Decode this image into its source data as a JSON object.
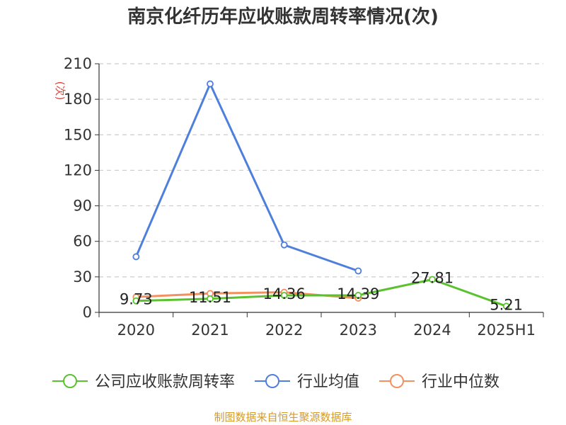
{
  "chart_data": {
    "type": "line",
    "title": "南京化纤历年应收账款周转率情况(次)",
    "ylabel": "(次)",
    "categories": [
      "2020",
      "2021",
      "2022",
      "2023",
      "2024",
      "2025H1"
    ],
    "ylim": [
      0,
      210
    ],
    "yticks": [
      0,
      30,
      60,
      90,
      120,
      150,
      180,
      210
    ],
    "grid": true,
    "legend_position": "bottom",
    "series": [
      {
        "name": "公司应收账款周转率",
        "color": "#5bc22f",
        "values": [
          9.73,
          11.51,
          14.36,
          14.39,
          27.81,
          5.21
        ],
        "labels": [
          "9.73",
          "11.51",
          "14.36",
          "14.39",
          "27.81",
          "5.21"
        ]
      },
      {
        "name": "行业均值",
        "color": "#4f7fdc",
        "values": [
          47,
          193,
          57,
          35,
          null,
          null
        ]
      },
      {
        "name": "行业中位数",
        "color": "#f2915f",
        "values": [
          13,
          16,
          17,
          12,
          null,
          null
        ]
      }
    ],
    "source": "制图数据来自恒生聚源数据库"
  }
}
